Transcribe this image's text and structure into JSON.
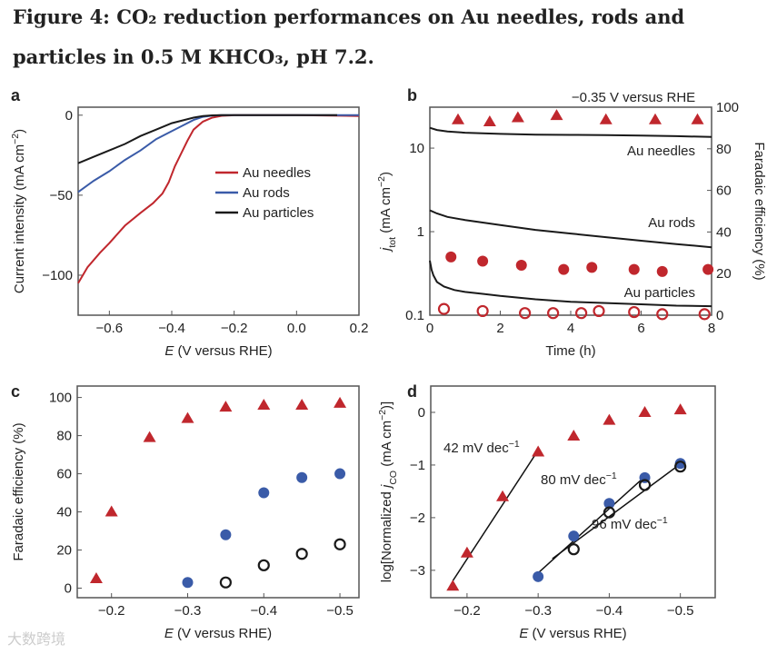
{
  "title_line1": "Figure 4: CO₂ reduction performances on Au needles, rods and",
  "title_line2": "particles in 0.5 M KHCO₃, pH 7.2.",
  "watermark": "大数跨境",
  "colors": {
    "red": "#c0272d",
    "blue": "#3a5ba8",
    "black": "#1a1a1a",
    "fe_axis": "#c0272d"
  },
  "chart_data": [
    {
      "panel": "a",
      "type": "line",
      "xlabel": "*E* (V versus RHE)",
      "ylabel": "Current intensity (mA cm^{−2})",
      "xlim": [
        -0.7,
        0.2
      ],
      "ylim": [
        -125,
        5
      ],
      "xticks": [
        -0.6,
        -0.4,
        -0.2,
        0.0,
        0.2
      ],
      "xticklabels": [
        "−0.6",
        "−0.4",
        "−0.2",
        "0.0",
        "0.2"
      ],
      "yticks": [
        0,
        -50,
        -100
      ],
      "yticklabels": [
        "0",
        "−50",
        "−100"
      ],
      "legend": {
        "placement": "center-right",
        "entries": [
          "Au needles",
          "Au rods",
          "Au particles"
        ]
      },
      "series": [
        {
          "name": "Au needles",
          "color": "red",
          "x": [
            -0.7,
            -0.67,
            -0.63,
            -0.6,
            -0.55,
            -0.5,
            -0.46,
            -0.43,
            -0.41,
            -0.39,
            -0.37,
            -0.35,
            -0.33,
            -0.3,
            -0.27,
            -0.24,
            -0.2,
            0.0,
            0.2
          ],
          "y": [
            -105,
            -95,
            -86,
            -80,
            -69,
            -61,
            -55,
            -49,
            -42,
            -32,
            -24,
            -16,
            -9,
            -4,
            -1.5,
            -0.4,
            0,
            0,
            -0.5
          ]
        },
        {
          "name": "Au rods",
          "color": "blue",
          "x": [
            -0.7,
            -0.65,
            -0.6,
            -0.55,
            -0.5,
            -0.45,
            -0.4,
            -0.36,
            -0.33,
            -0.3,
            -0.27,
            -0.24,
            0.2
          ],
          "y": [
            -48,
            -41,
            -35,
            -28,
            -22,
            -15,
            -10,
            -6,
            -3,
            -1,
            -0.3,
            0,
            0
          ]
        },
        {
          "name": "Au particles",
          "color": "black",
          "x": [
            -0.7,
            -0.65,
            -0.6,
            -0.55,
            -0.5,
            -0.45,
            -0.4,
            -0.36,
            -0.33,
            -0.3,
            -0.27,
            -0.24,
            0.13
          ],
          "y": [
            -30,
            -26,
            -22,
            -18,
            -13,
            -9,
            -5,
            -3,
            -1.5,
            -0.5,
            -0.1,
            0,
            0
          ]
        }
      ]
    },
    {
      "panel": "b",
      "type": "line+scatter",
      "annotation": "−0.35 V versus RHE",
      "xlabel": "Time (h)",
      "ylabel": "*j*_{tot} (mA cm^{−2})",
      "y2label": "Faradaic efficiency (%)",
      "xlim": [
        0,
        8
      ],
      "ylim_log10": [
        -1,
        1.49
      ],
      "y2lim": [
        0,
        100
      ],
      "xticks": [
        0,
        2,
        4,
        6,
        8
      ],
      "xticklabels": [
        "0",
        "2",
        "4",
        "6",
        "8"
      ],
      "yticks": [
        10,
        1,
        0.1
      ],
      "yticklabels": [
        "10",
        "1",
        "0.1"
      ],
      "y2ticks": [
        0,
        20,
        40,
        60,
        80,
        100
      ],
      "y2ticklabels": [
        "0",
        "20",
        "40",
        "60",
        "80",
        "100"
      ],
      "curve_labels": [
        "Au needles",
        "Au rods",
        "Au particles"
      ],
      "series": [
        {
          "name": "Au needles j",
          "color": "black",
          "x": [
            0,
            0.2,
            0.5,
            1,
            2,
            3,
            4,
            5,
            6,
            7,
            8
          ],
          "y": [
            17.5,
            16.5,
            15.8,
            15.3,
            14.8,
            14.5,
            14.4,
            14.3,
            14.1,
            13.9,
            13.6
          ]
        },
        {
          "name": "Au rods j",
          "color": "black",
          "x": [
            0,
            0.2,
            0.5,
            1,
            2,
            3,
            4,
            5,
            6,
            7,
            8
          ],
          "y": [
            1.8,
            1.65,
            1.5,
            1.38,
            1.2,
            1.05,
            0.95,
            0.86,
            0.78,
            0.71,
            0.65
          ]
        },
        {
          "name": "Au particles j",
          "color": "black",
          "x": [
            0,
            0.05,
            0.1,
            0.2,
            0.4,
            0.7,
            1,
            1.5,
            2,
            3,
            4,
            5,
            6,
            7,
            8
          ],
          "y": [
            0.45,
            0.35,
            0.3,
            0.25,
            0.22,
            0.2,
            0.19,
            0.18,
            0.17,
            0.155,
            0.145,
            0.14,
            0.135,
            0.13,
            0.128
          ]
        },
        {
          "name": "Au needles FE",
          "marker": "triangle",
          "color": "red",
          "axis": "right",
          "x": [
            0.8,
            1.7,
            2.5,
            3.6,
            5.0,
            6.4,
            7.6
          ],
          "y": [
            94,
            93,
            95,
            96,
            94,
            94,
            94
          ]
        },
        {
          "name": "Au rods FE",
          "marker": "circle",
          "color": "red",
          "axis": "right",
          "x": [
            0.6,
            1.5,
            2.6,
            3.8,
            4.6,
            5.8,
            6.6,
            7.9
          ],
          "y": [
            28,
            26,
            24,
            22,
            23,
            22,
            21,
            22
          ]
        },
        {
          "name": "Au particles FE",
          "marker": "open-circle",
          "color": "red",
          "axis": "right",
          "x": [
            0.4,
            1.5,
            2.7,
            3.5,
            4.3,
            4.8,
            5.8,
            6.6,
            7.8
          ],
          "y": [
            3,
            2,
            1,
            1,
            1,
            2,
            1.5,
            0.5,
            0.5
          ]
        }
      ]
    },
    {
      "panel": "c",
      "type": "scatter",
      "xlabel": "*E* (V versus RHE)",
      "ylabel": "Faradaic efficiency (%)",
      "xlim": [
        -0.155,
        -0.525
      ],
      "ylim": [
        -5,
        106
      ],
      "xticks": [
        -0.2,
        -0.3,
        -0.4,
        -0.5
      ],
      "xticklabels": [
        "−0.2",
        "−0.3",
        "−0.4",
        "−0.5"
      ],
      "yticks": [
        0,
        20,
        40,
        60,
        80,
        100
      ],
      "yticklabels": [
        "0",
        "20",
        "40",
        "60",
        "80",
        "100"
      ],
      "series": [
        {
          "name": "Au needles",
          "marker": "triangle",
          "color": "red",
          "x": [
            -0.18,
            -0.2,
            -0.25,
            -0.3,
            -0.35,
            -0.4,
            -0.45,
            -0.5
          ],
          "y": [
            5,
            40,
            79,
            89,
            95,
            96,
            96,
            97
          ]
        },
        {
          "name": "Au rods",
          "marker": "circle",
          "color": "blue",
          "x": [
            -0.3,
            -0.35,
            -0.4,
            -0.45,
            -0.5
          ],
          "y": [
            3,
            28,
            50,
            58,
            60
          ]
        },
        {
          "name": "Au particles",
          "marker": "open-circle",
          "color": "black",
          "x": [
            -0.35,
            -0.4,
            -0.45,
            -0.5
          ],
          "y": [
            3,
            12,
            18,
            23
          ]
        }
      ]
    },
    {
      "panel": "d",
      "type": "scatter",
      "xlabel": "*E* (V versus RHE)",
      "ylabel": "log[Normalized *j*_{CO} (mA cm^{−2})]",
      "xlim": [
        -0.149,
        -0.549
      ],
      "ylim": [
        -3.52,
        0.5
      ],
      "xticks": [
        -0.2,
        -0.3,
        -0.4,
        -0.5
      ],
      "xticklabels": [
        "−0.2",
        "−0.3",
        "−0.4",
        "−0.5"
      ],
      "yticks": [
        0,
        -1,
        -2,
        -3
      ],
      "yticklabels": [
        "0",
        "−1",
        "−2",
        "−3"
      ],
      "annotations": [
        "42 mV dec^{−1}",
        "80 mV dec^{−1}",
        "96 mV dec^{−1}"
      ],
      "fits": [
        {
          "name": "42 mV dec−1",
          "x": [
            -0.18,
            -0.3
          ],
          "y": [
            -3.2,
            -0.72
          ]
        },
        {
          "name": "80 mV dec−1",
          "x": [
            -0.3,
            -0.45
          ],
          "y": [
            -3.05,
            -1.22
          ]
        },
        {
          "name": "96 mV dec−1",
          "x": [
            -0.32,
            -0.5
          ],
          "y": [
            -2.78,
            -0.98
          ]
        }
      ],
      "series": [
        {
          "name": "Au needles",
          "marker": "triangle",
          "color": "red",
          "x": [
            -0.18,
            -0.2,
            -0.25,
            -0.3,
            -0.35,
            -0.4,
            -0.45,
            -0.5
          ],
          "y": [
            -3.3,
            -2.67,
            -1.6,
            -0.75,
            -0.45,
            -0.15,
            0,
            0.05
          ]
        },
        {
          "name": "Au rods",
          "marker": "circle",
          "color": "blue",
          "x": [
            -0.3,
            -0.35,
            -0.4,
            -0.45,
            -0.5
          ],
          "y": [
            -3.12,
            -2.35,
            -1.73,
            -1.24,
            -0.97
          ]
        },
        {
          "name": "Au particles",
          "marker": "open-circle",
          "color": "black",
          "x": [
            -0.35,
            -0.4,
            -0.45,
            -0.5
          ],
          "y": [
            -2.6,
            -1.9,
            -1.38,
            -1.03
          ]
        }
      ]
    }
  ]
}
